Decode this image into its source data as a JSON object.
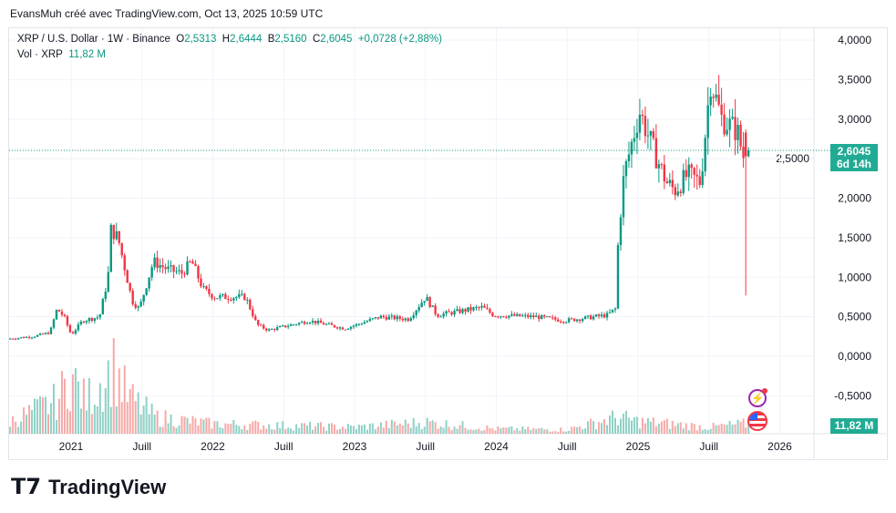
{
  "header": {
    "credit": "EvansMuh créé avec TradingView.com, Oct 13, 2025 10:59 UTC"
  },
  "legend": {
    "symbol": "XRP / U.S. Dollar · 1W · Binance",
    "o_label": "O",
    "o": "2,5313",
    "h_label": "H",
    "h": "2,6444",
    "l_label": "B",
    "l": "2,5160",
    "c_label": "C",
    "c": "2,6045",
    "change": "+0,0728 (+2,88%)",
    "vol_label": "Vol · XRP",
    "vol": "11,82 M"
  },
  "price_tag": {
    "price": "2,6045",
    "countdown": "6d 14h"
  },
  "volume_tag": "11,82 M",
  "brand": "TradingView",
  "colors": {
    "up": "#089981",
    "down": "#f23645",
    "vol_up": "#8fd1c6",
    "vol_down": "#f7a9a7"
  },
  "chart_data": {
    "type": "candlestick",
    "title": "XRP / U.S. Dollar · 1W · Binance",
    "ylim": [
      -0.75,
      4.2
    ],
    "y_ticks": [
      "4,0000",
      "3,5000",
      "3,0000",
      "2,5000",
      "2,0000",
      "1,5000",
      "1,0000",
      "0,5000",
      "0,0000",
      "-0,5000"
    ],
    "y_tick_values": [
      4,
      3.5,
      3,
      2.5,
      2,
      1.5,
      1,
      0.5,
      0,
      -0.5
    ],
    "x_ticks": [
      {
        "label": "2021",
        "t": 2021
      },
      {
        "label": "Juill",
        "t": 2021.5
      },
      {
        "label": "2022",
        "t": 2022
      },
      {
        "label": "Juill",
        "t": 2022.5
      },
      {
        "label": "2023",
        "t": 2023
      },
      {
        "label": "Juill",
        "t": 2023.5
      },
      {
        "label": "2024",
        "t": 2024
      },
      {
        "label": "Juill",
        "t": 2024.5
      },
      {
        "label": "2025",
        "t": 2025
      },
      {
        "label": "Juill",
        "t": 2025.5
      },
      {
        "label": "2026",
        "t": 2026
      }
    ],
    "close_anchors": [
      [
        2020.57,
        0.22
      ],
      [
        2020.75,
        0.25
      ],
      [
        2020.87,
        0.3
      ],
      [
        2020.92,
        0.6
      ],
      [
        2020.97,
        0.5
      ],
      [
        2021.02,
        0.27
      ],
      [
        2021.1,
        0.45
      ],
      [
        2021.22,
        0.5
      ],
      [
        2021.28,
        1.0
      ],
      [
        2021.3,
        1.6
      ],
      [
        2021.35,
        1.5
      ],
      [
        2021.45,
        0.7
      ],
      [
        2021.5,
        0.6
      ],
      [
        2021.6,
        1.2
      ],
      [
        2021.7,
        1.1
      ],
      [
        2021.8,
        1.05
      ],
      [
        2021.87,
        1.2
      ],
      [
        2021.95,
        0.85
      ],
      [
        2022.03,
        0.75
      ],
      [
        2022.25,
        0.75
      ],
      [
        2022.33,
        0.4
      ],
      [
        2022.41,
        0.33
      ],
      [
        2022.7,
        0.45
      ],
      [
        2022.95,
        0.35
      ],
      [
        2023.2,
        0.5
      ],
      [
        2023.4,
        0.47
      ],
      [
        2023.52,
        0.75
      ],
      [
        2023.6,
        0.52
      ],
      [
        2023.92,
        0.62
      ],
      [
        2024.0,
        0.52
      ],
      [
        2024.3,
        0.5
      ],
      [
        2024.5,
        0.45
      ],
      [
        2024.8,
        0.52
      ],
      [
        2024.86,
        0.6
      ],
      [
        2024.88,
        1.5
      ],
      [
        2024.92,
        2.3
      ],
      [
        2025.03,
        3.1
      ],
      [
        2025.13,
        2.6
      ],
      [
        2025.22,
        2.2
      ],
      [
        2025.28,
        2.1
      ],
      [
        2025.37,
        2.3
      ],
      [
        2025.46,
        2.2
      ],
      [
        2025.53,
        3.5
      ],
      [
        2025.61,
        3.0
      ],
      [
        2025.72,
        2.85
      ],
      [
        2025.76,
        2.53
      ]
    ],
    "last_candles": [
      {
        "o": 2.83,
        "h": 2.87,
        "l": 0.77,
        "c": 2.53
      },
      {
        "o": 2.5313,
        "h": 2.6444,
        "l": 2.516,
        "c": 2.6045
      }
    ],
    "volume_anchors_millions": [
      [
        2020.57,
        15
      ],
      [
        2020.9,
        40
      ],
      [
        2021.0,
        70
      ],
      [
        2021.1,
        40
      ],
      [
        2021.3,
        80
      ],
      [
        2021.4,
        45
      ],
      [
        2021.6,
        20
      ],
      [
        2022.0,
        12
      ],
      [
        2022.5,
        10
      ],
      [
        2023.0,
        8
      ],
      [
        2023.5,
        14
      ],
      [
        2024.0,
        6
      ],
      [
        2024.5,
        5
      ],
      [
        2024.85,
        20
      ],
      [
        2025.0,
        15
      ],
      [
        2025.5,
        8
      ],
      [
        2025.76,
        12
      ]
    ],
    "current_price": 2.6045
  }
}
